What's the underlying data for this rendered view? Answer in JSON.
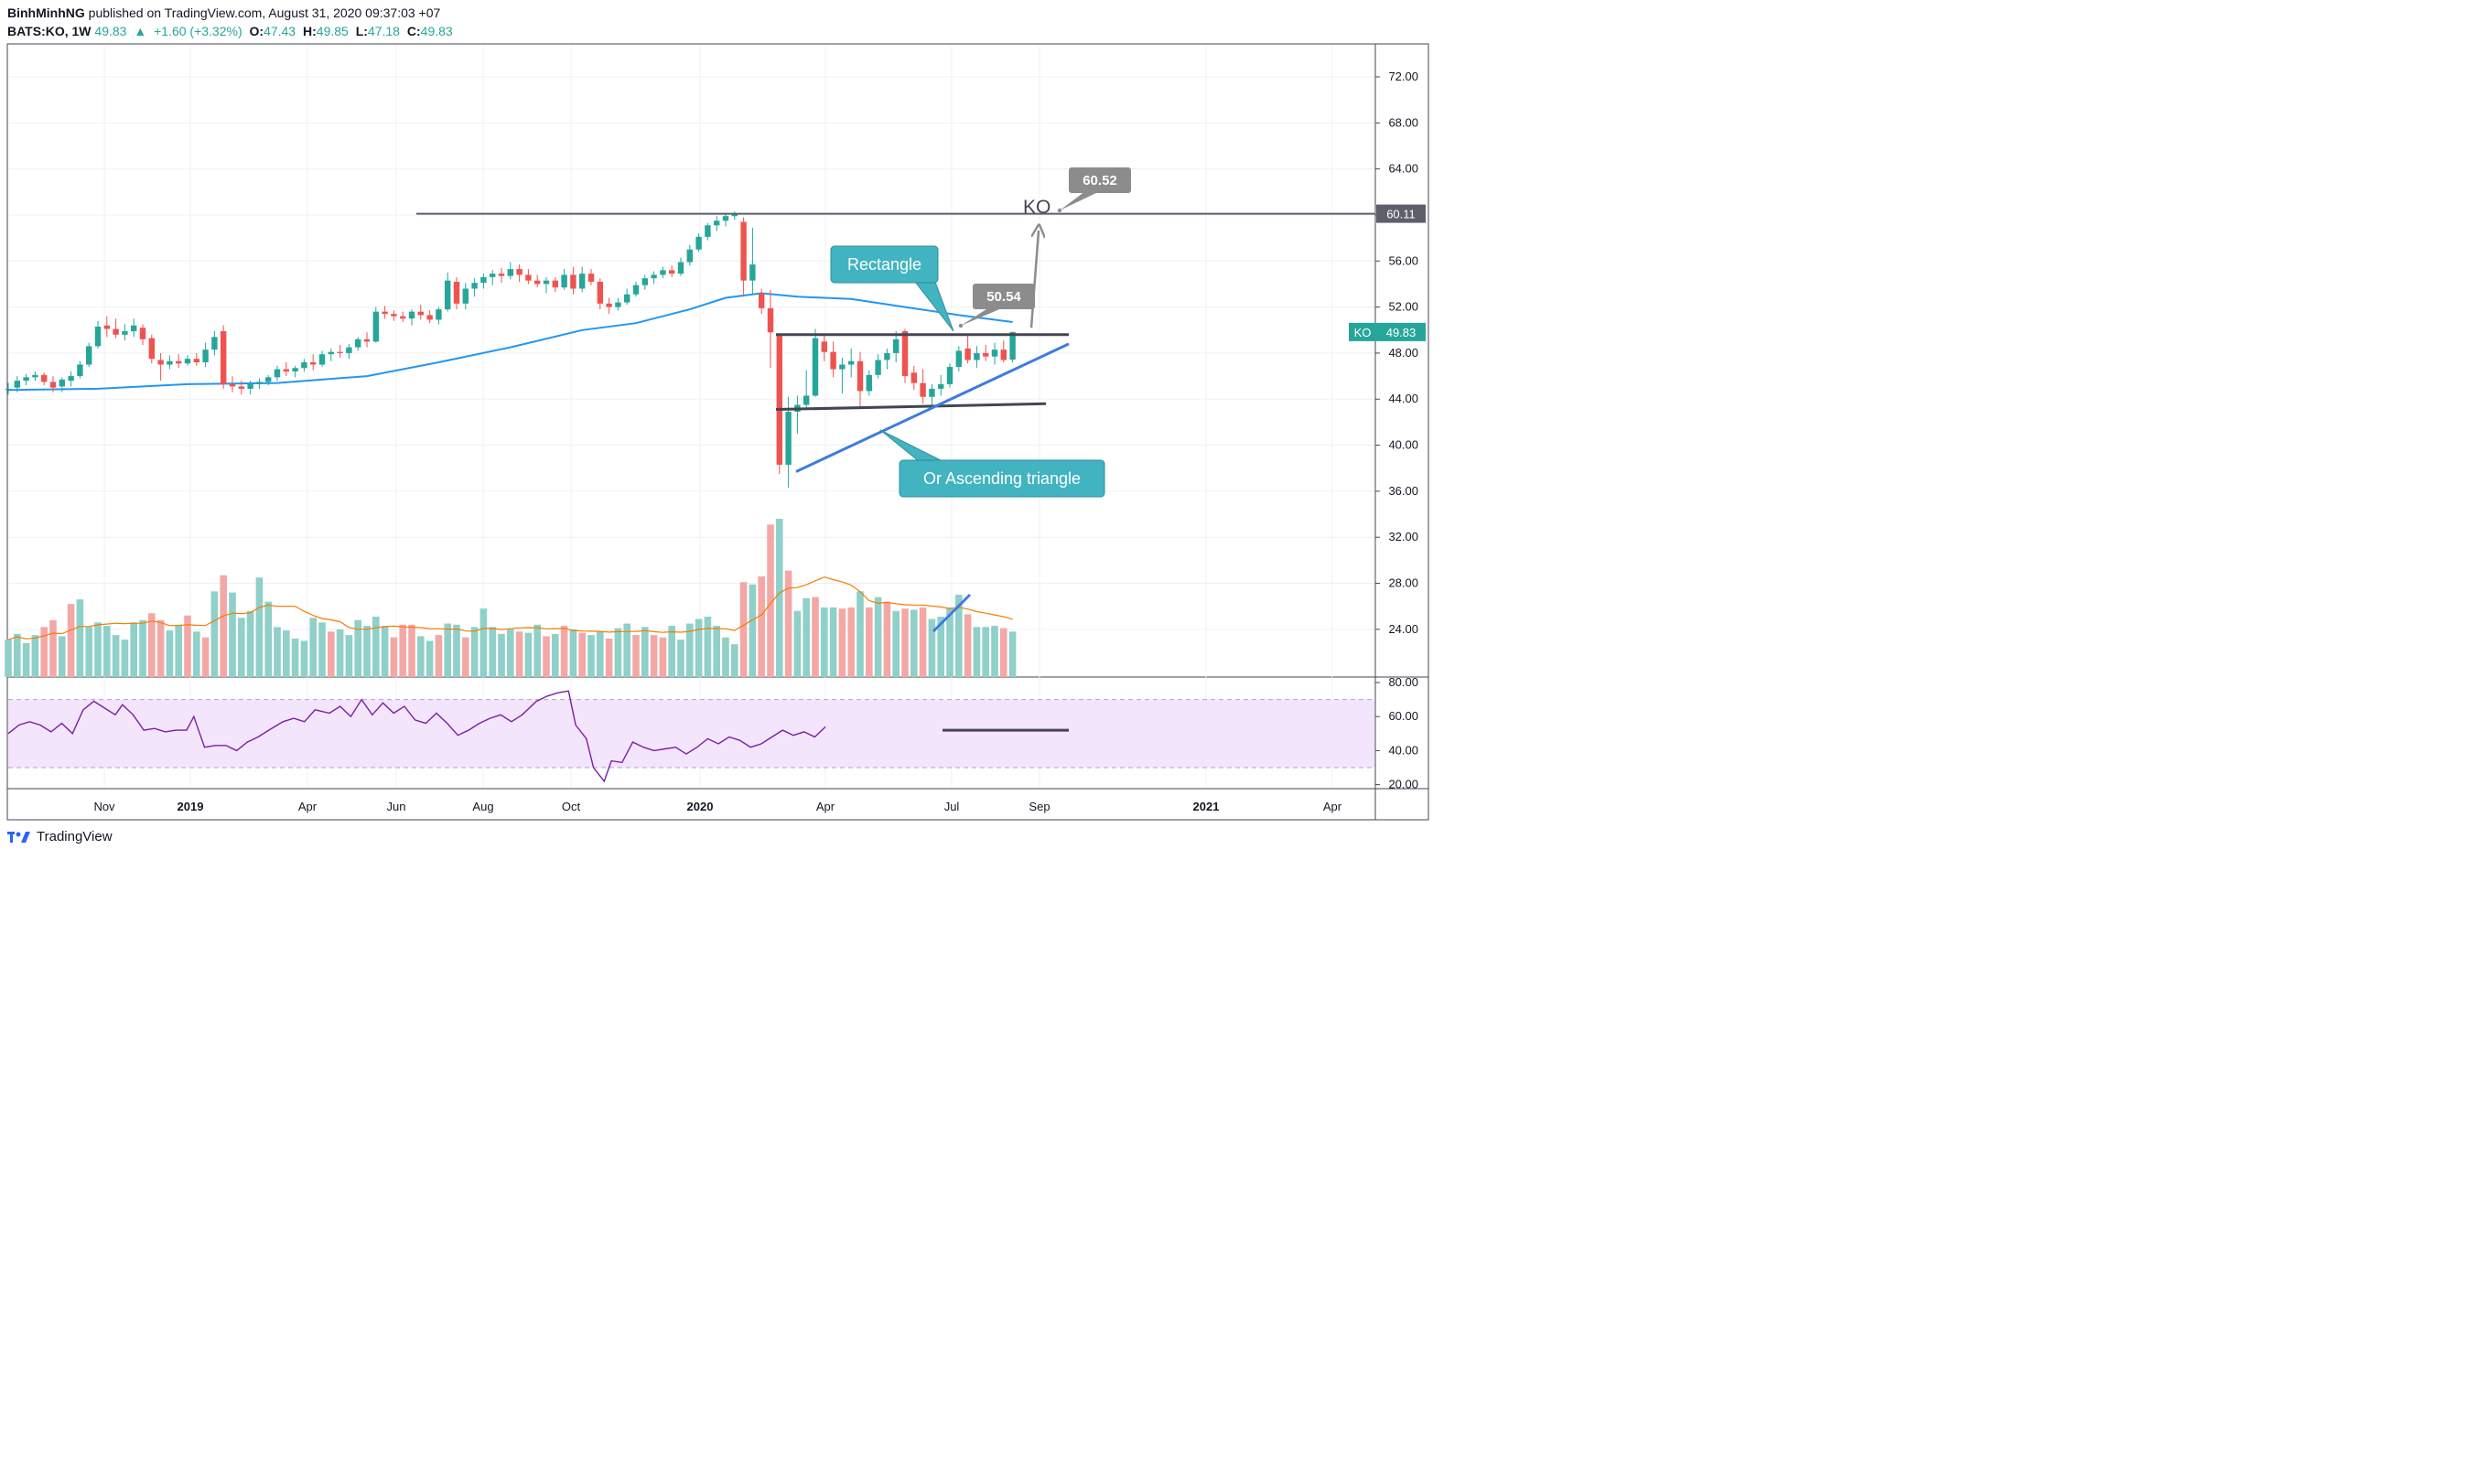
{
  "header": {
    "publisher": "BinhMinhNG",
    "published_text": "published on TradingView.com, August 31, 2020 09:37:03 +07",
    "symbol": "BATS:KO, 1W",
    "last": "49.83",
    "change": "+1.60 (+3.32%)",
    "o_label": "O:",
    "o": "47.43",
    "h_label": "H:",
    "h": "49.85",
    "l_label": "L:",
    "l": "47.18",
    "c_label": "C:",
    "c": "49.83"
  },
  "footer": {
    "brand": "TradingView"
  },
  "colors": {
    "up": "#26a69a",
    "down": "#ef5350",
    "ma": "#2196f3",
    "rsi": "#7b1fa2",
    "rsi_band": "#f3e5fb",
    "vol_up": "#8fd0c9",
    "vol_down": "#f3a8a6",
    "vol_ma": "#f57c00",
    "callout": "#41b3c1",
    "gray_label": "#8c8c8c"
  },
  "chart_data": {
    "type": "candlestick",
    "interval": "1W",
    "price_axis": {
      "ticks": [
        "72.00",
        "68.00",
        "64.00",
        "60.00",
        "56.00",
        "52.00",
        "48.00",
        "44.00",
        "40.00",
        "36.00",
        "32.00",
        "28.00",
        "24.00"
      ],
      "ylim": [
        21,
        75
      ]
    },
    "rsi_axis": {
      "ticks": [
        "80.00",
        "60.00",
        "40.00",
        "20.00"
      ],
      "ylim": [
        16,
        80
      ],
      "band": [
        30,
        70
      ]
    },
    "time_axis": [
      "Nov",
      "2019",
      "Apr",
      "Jun",
      "Aug",
      "Oct",
      "2020",
      "Apr",
      "Jul",
      "Sep",
      "2021",
      "Apr"
    ],
    "candles": [
      [
        44.8,
        45.4,
        44.4,
        44.9
      ],
      [
        45.0,
        46.0,
        44.6,
        45.6
      ],
      [
        45.6,
        46.2,
        45.2,
        45.9
      ],
      [
        45.9,
        46.4,
        45.6,
        46.1
      ],
      [
        46.1,
        46.3,
        45.2,
        45.5
      ],
      [
        45.5,
        46.0,
        44.6,
        45.0
      ],
      [
        45.1,
        45.9,
        44.6,
        45.7
      ],
      [
        45.6,
        46.4,
        45.1,
        46.0
      ],
      [
        46.0,
        47.3,
        45.8,
        47.0
      ],
      [
        47.0,
        48.9,
        46.8,
        48.6
      ],
      [
        48.6,
        50.8,
        48.4,
        50.3
      ],
      [
        50.4,
        51.2,
        49.4,
        50.1
      ],
      [
        50.1,
        51.0,
        49.3,
        49.6
      ],
      [
        49.6,
        50.5,
        49.1,
        49.9
      ],
      [
        49.9,
        51.0,
        49.4,
        50.4
      ],
      [
        50.2,
        50.5,
        48.7,
        49.2
      ],
      [
        49.3,
        49.6,
        47.1,
        47.5
      ],
      [
        47.4,
        48.0,
        45.6,
        47.0
      ],
      [
        47.0,
        47.8,
        46.6,
        47.3
      ],
      [
        47.3,
        47.9,
        46.7,
        47.1
      ],
      [
        47.1,
        47.8,
        46.9,
        47.5
      ],
      [
        47.5,
        48.0,
        46.9,
        47.2
      ],
      [
        47.2,
        48.9,
        46.8,
        48.3
      ],
      [
        48.3,
        49.9,
        47.8,
        49.4
      ],
      [
        49.9,
        50.4,
        44.9,
        45.3
      ],
      [
        45.3,
        46.0,
        44.6,
        45.1
      ],
      [
        45.1,
        45.6,
        44.4,
        44.9
      ],
      [
        44.9,
        45.6,
        44.4,
        45.3
      ],
      [
        45.3,
        45.8,
        44.9,
        45.5
      ],
      [
        45.5,
        46.1,
        45.2,
        45.9
      ],
      [
        45.9,
        46.9,
        45.6,
        46.6
      ],
      [
        46.6,
        47.2,
        46.0,
        46.4
      ],
      [
        46.4,
        46.9,
        45.9,
        46.7
      ],
      [
        46.7,
        47.5,
        46.4,
        47.2
      ],
      [
        47.2,
        47.9,
        46.5,
        47.0
      ],
      [
        47.0,
        48.2,
        46.8,
        47.9
      ],
      [
        47.9,
        48.4,
        47.3,
        48.1
      ],
      [
        48.1,
        48.7,
        47.6,
        48.0
      ],
      [
        48.0,
        48.8,
        47.5,
        48.5
      ],
      [
        48.5,
        49.4,
        48.2,
        49.2
      ],
      [
        49.2,
        49.8,
        48.5,
        49.0
      ],
      [
        49.0,
        52.0,
        48.9,
        51.6
      ],
      [
        51.6,
        52.1,
        51.0,
        51.4
      ],
      [
        51.4,
        51.7,
        50.8,
        51.2
      ],
      [
        51.2,
        51.6,
        50.7,
        51.0
      ],
      [
        51.0,
        51.8,
        50.4,
        51.6
      ],
      [
        51.6,
        52.2,
        50.9,
        51.3
      ],
      [
        51.3,
        51.7,
        50.6,
        50.9
      ],
      [
        50.9,
        52.0,
        50.5,
        51.8
      ],
      [
        51.8,
        55.0,
        51.6,
        54.3
      ],
      [
        54.2,
        54.6,
        51.8,
        52.3
      ],
      [
        52.3,
        54.1,
        51.8,
        53.6
      ],
      [
        53.6,
        54.5,
        52.9,
        54.1
      ],
      [
        54.1,
        54.9,
        53.6,
        54.6
      ],
      [
        54.6,
        55.2,
        53.9,
        54.9
      ],
      [
        54.9,
        55.4,
        54.1,
        54.7
      ],
      [
        54.7,
        55.9,
        54.4,
        55.3
      ],
      [
        55.3,
        55.7,
        54.2,
        54.8
      ],
      [
        54.8,
        55.3,
        54.0,
        54.3
      ],
      [
        54.3,
        54.8,
        53.7,
        54.0
      ],
      [
        54.0,
        54.6,
        53.2,
        54.3
      ],
      [
        54.3,
        54.6,
        53.3,
        53.7
      ],
      [
        53.7,
        55.3,
        53.5,
        54.8
      ],
      [
        54.8,
        55.5,
        53.1,
        53.6
      ],
      [
        53.6,
        55.5,
        53.3,
        54.9
      ],
      [
        54.9,
        55.3,
        53.9,
        54.2
      ],
      [
        54.2,
        54.5,
        51.8,
        52.3
      ],
      [
        52.3,
        52.8,
        51.4,
        52.0
      ],
      [
        52.0,
        52.8,
        51.7,
        52.4
      ],
      [
        52.4,
        53.6,
        52.2,
        53.1
      ],
      [
        53.1,
        54.2,
        52.9,
        53.9
      ],
      [
        53.9,
        54.8,
        53.5,
        54.5
      ],
      [
        54.5,
        55.1,
        54.0,
        54.8
      ],
      [
        54.8,
        55.5,
        54.5,
        55.2
      ],
      [
        55.2,
        55.6,
        54.6,
        54.9
      ],
      [
        54.9,
        56.3,
        54.7,
        55.9
      ],
      [
        55.9,
        57.4,
        55.6,
        57.0
      ],
      [
        57.0,
        58.4,
        56.8,
        58.1
      ],
      [
        58.1,
        59.3,
        57.8,
        59.1
      ],
      [
        59.1,
        59.9,
        58.6,
        59.5
      ],
      [
        59.5,
        60.2,
        59.0,
        59.9
      ],
      [
        59.9,
        60.3,
        59.6,
        60.1
      ],
      [
        59.4,
        59.8,
        52.9,
        54.3
      ],
      [
        54.3,
        58.9,
        53.1,
        55.7
      ],
      [
        53.2,
        53.6,
        51.4,
        51.9
      ],
      [
        51.9,
        53.5,
        46.7,
        49.8
      ],
      [
        49.5,
        49.5,
        37.5,
        38.3
      ],
      [
        38.3,
        44.2,
        36.3,
        42.9
      ],
      [
        42.9,
        44.3,
        41.0,
        43.5
      ],
      [
        43.5,
        46.5,
        43.1,
        44.3
      ],
      [
        44.3,
        50.1,
        44.2,
        49.3
      ],
      [
        49.0,
        49.5,
        47.3,
        48.1
      ],
      [
        48.1,
        49.0,
        45.9,
        46.6
      ],
      [
        46.6,
        47.6,
        44.5,
        47.0
      ],
      [
        47.0,
        48.4,
        45.9,
        47.3
      ],
      [
        47.3,
        48.1,
        43.2,
        44.7
      ],
      [
        44.7,
        46.5,
        44.3,
        46.1
      ],
      [
        46.1,
        47.9,
        45.8,
        47.4
      ],
      [
        47.4,
        48.4,
        46.6,
        48.0
      ],
      [
        48.0,
        49.9,
        47.2,
        49.2
      ],
      [
        49.9,
        50.1,
        45.4,
        46.0
      ],
      [
        46.3,
        46.9,
        44.8,
        45.4
      ],
      [
        45.4,
        46.6,
        43.6,
        44.2
      ],
      [
        44.2,
        45.3,
        43.5,
        44.9
      ],
      [
        44.9,
        46.1,
        44.3,
        45.3
      ],
      [
        45.3,
        47.1,
        45.0,
        46.8
      ],
      [
        46.8,
        48.6,
        46.4,
        48.2
      ],
      [
        48.4,
        49.6,
        47.1,
        47.4
      ],
      [
        47.4,
        48.6,
        46.7,
        48.0
      ],
      [
        48.0,
        48.7,
        47.3,
        47.7
      ],
      [
        47.7,
        48.9,
        47.0,
        48.3
      ],
      [
        48.3,
        49.1,
        47.2,
        47.4
      ],
      [
        47.43,
        49.85,
        47.18,
        49.83
      ]
    ],
    "ma_line": [
      [
        0,
        44.8
      ],
      [
        10,
        44.9
      ],
      [
        20,
        45.3
      ],
      [
        30,
        45.4
      ],
      [
        40,
        46.0
      ],
      [
        48,
        47.2
      ],
      [
        56,
        48.5
      ],
      [
        64,
        50.0
      ],
      [
        70,
        50.6
      ],
      [
        76,
        51.8
      ],
      [
        80,
        52.8
      ],
      [
        84,
        53.2
      ],
      [
        88,
        52.9
      ],
      [
        94,
        52.7
      ],
      [
        100,
        52.0
      ],
      [
        106,
        51.3
      ],
      [
        112,
        50.7
      ]
    ],
    "volume": [
      [
        23.1,
        1
      ],
      [
        23.6,
        1
      ],
      [
        22.8,
        1
      ],
      [
        23.5,
        1
      ],
      [
        24.2,
        0
      ],
      [
        24.8,
        0
      ],
      [
        23.4,
        1
      ],
      [
        26.2,
        0
      ],
      [
        26.6,
        1
      ],
      [
        24.2,
        1
      ],
      [
        24.6,
        1
      ],
      [
        24.3,
        1
      ],
      [
        23.5,
        1
      ],
      [
        23.1,
        1
      ],
      [
        24.6,
        1
      ],
      [
        24.8,
        1
      ],
      [
        25.4,
        0
      ],
      [
        24.8,
        0
      ],
      [
        23.9,
        1
      ],
      [
        24.4,
        1
      ],
      [
        25.2,
        0
      ],
      [
        23.8,
        1
      ],
      [
        23.3,
        0
      ],
      [
        27.3,
        1
      ],
      [
        28.7,
        0
      ],
      [
        27.2,
        1
      ],
      [
        25.0,
        1
      ],
      [
        25.6,
        1
      ],
      [
        28.5,
        1
      ],
      [
        26.4,
        1
      ],
      [
        24.2,
        1
      ],
      [
        23.9,
        1
      ],
      [
        23.2,
        1
      ],
      [
        23.0,
        1
      ],
      [
        25.0,
        1
      ],
      [
        24.6,
        1
      ],
      [
        23.8,
        0
      ],
      [
        24.0,
        1
      ],
      [
        23.5,
        1
      ],
      [
        24.8,
        1
      ],
      [
        24.3,
        1
      ],
      [
        25.1,
        1
      ],
      [
        24.3,
        1
      ],
      [
        23.3,
        0
      ],
      [
        24.4,
        0
      ],
      [
        24.4,
        0
      ],
      [
        23.4,
        1
      ],
      [
        23.0,
        1
      ],
      [
        23.5,
        0
      ],
      [
        24.5,
        1
      ],
      [
        24.4,
        1
      ],
      [
        23.3,
        0
      ],
      [
        24.2,
        1
      ],
      [
        25.8,
        1
      ],
      [
        24.2,
        1
      ],
      [
        23.6,
        1
      ],
      [
        24.0,
        1
      ],
      [
        23.8,
        0
      ],
      [
        23.7,
        1
      ],
      [
        24.4,
        1
      ],
      [
        23.4,
        0
      ],
      [
        23.6,
        1
      ],
      [
        24.3,
        0
      ],
      [
        24.0,
        1
      ],
      [
        23.7,
        0
      ],
      [
        23.5,
        1
      ],
      [
        23.8,
        1
      ],
      [
        23.2,
        0
      ],
      [
        24.1,
        1
      ],
      [
        24.5,
        1
      ],
      [
        23.5,
        0
      ],
      [
        24.2,
        1
      ],
      [
        23.5,
        0
      ],
      [
        23.3,
        0
      ],
      [
        24.3,
        1
      ],
      [
        23.1,
        1
      ],
      [
        24.5,
        1
      ],
      [
        24.9,
        1
      ],
      [
        25.1,
        1
      ],
      [
        24.3,
        1
      ],
      [
        23.3,
        1
      ],
      [
        22.7,
        1
      ],
      [
        28.1,
        0
      ],
      [
        27.9,
        1
      ],
      [
        28.6,
        0
      ],
      [
        33.1,
        0
      ],
      [
        33.6,
        1
      ],
      [
        29.1,
        0
      ],
      [
        25.6,
        1
      ],
      [
        26.7,
        1
      ],
      [
        26.8,
        0
      ],
      [
        25.9,
        1
      ],
      [
        25.9,
        1
      ],
      [
        25.8,
        0
      ],
      [
        25.9,
        0
      ],
      [
        27.3,
        1
      ],
      [
        25.9,
        0
      ],
      [
        26.8,
        1
      ],
      [
        26.4,
        0
      ],
      [
        25.6,
        1
      ],
      [
        25.8,
        0
      ],
      [
        25.7,
        1
      ],
      [
        25.9,
        0
      ],
      [
        24.9,
        1
      ],
      [
        25.1,
        1
      ],
      [
        25.9,
        1
      ],
      [
        27.0,
        1
      ],
      [
        25.3,
        0
      ],
      [
        24.2,
        1
      ],
      [
        24.2,
        1
      ],
      [
        24.3,
        1
      ],
      [
        24.1,
        0
      ],
      [
        23.8,
        1
      ]
    ],
    "rsi": [
      [
        0,
        50
      ],
      [
        3,
        55
      ],
      [
        6,
        57
      ],
      [
        9,
        55
      ],
      [
        12,
        51
      ],
      [
        15,
        56
      ],
      [
        18,
        50
      ],
      [
        21,
        64
      ],
      [
        24,
        69
      ],
      [
        27,
        65
      ],
      [
        30,
        61
      ],
      [
        32,
        67
      ],
      [
        35,
        61
      ],
      [
        38,
        52
      ],
      [
        41,
        53
      ],
      [
        44,
        51
      ],
      [
        47,
        52
      ],
      [
        50,
        52
      ],
      [
        52,
        60
      ],
      [
        55,
        42
      ],
      [
        58,
        43
      ],
      [
        61,
        43
      ],
      [
        64,
        40
      ],
      [
        67,
        45
      ],
      [
        70,
        48
      ],
      [
        73,
        52
      ],
      [
        77,
        57
      ],
      [
        80,
        59
      ],
      [
        83,
        57
      ],
      [
        86,
        64
      ],
      [
        90,
        62
      ],
      [
        93,
        66
      ],
      [
        96,
        60
      ],
      [
        99,
        70
      ],
      [
        102,
        61
      ],
      [
        105,
        68
      ],
      [
        108,
        62
      ],
      [
        111,
        66
      ],
      [
        114,
        58
      ],
      [
        117,
        56
      ],
      [
        120,
        62
      ],
      [
        123,
        56
      ],
      [
        126,
        49
      ],
      [
        129,
        52
      ],
      [
        132,
        56
      ],
      [
        135,
        59
      ],
      [
        138,
        61
      ],
      [
        141,
        57
      ],
      [
        144,
        61
      ],
      [
        148,
        69
      ],
      [
        151,
        72
      ],
      [
        154,
        74
      ],
      [
        157,
        75
      ],
      [
        159,
        55
      ],
      [
        162,
        47
      ],
      [
        164,
        30
      ],
      [
        167,
        22
      ],
      [
        169,
        34
      ],
      [
        172,
        33
      ],
      [
        175,
        45
      ],
      [
        178,
        42
      ],
      [
        181,
        40
      ],
      [
        184,
        41
      ],
      [
        187,
        42
      ],
      [
        190,
        38
      ],
      [
        193,
        42
      ],
      [
        196,
        47
      ],
      [
        199,
        44
      ],
      [
        202,
        48
      ],
      [
        205,
        46
      ],
      [
        208,
        42
      ],
      [
        211,
        44
      ],
      [
        214,
        48
      ],
      [
        217,
        52
      ],
      [
        220,
        49
      ],
      [
        223,
        51
      ],
      [
        226,
        48
      ],
      [
        229,
        54
      ]
    ],
    "annotations": [
      {
        "type": "callout",
        "text": "Rectangle"
      },
      {
        "type": "callout",
        "text": "Or Ascending triangle"
      },
      {
        "type": "label",
        "text": "50.54"
      },
      {
        "type": "label",
        "text": "60.52"
      },
      {
        "type": "text",
        "text": "KO"
      },
      {
        "type": "hline",
        "label": "60.11"
      },
      {
        "type": "price_tag",
        "symbol": "KO",
        "value": "49.83"
      }
    ]
  }
}
